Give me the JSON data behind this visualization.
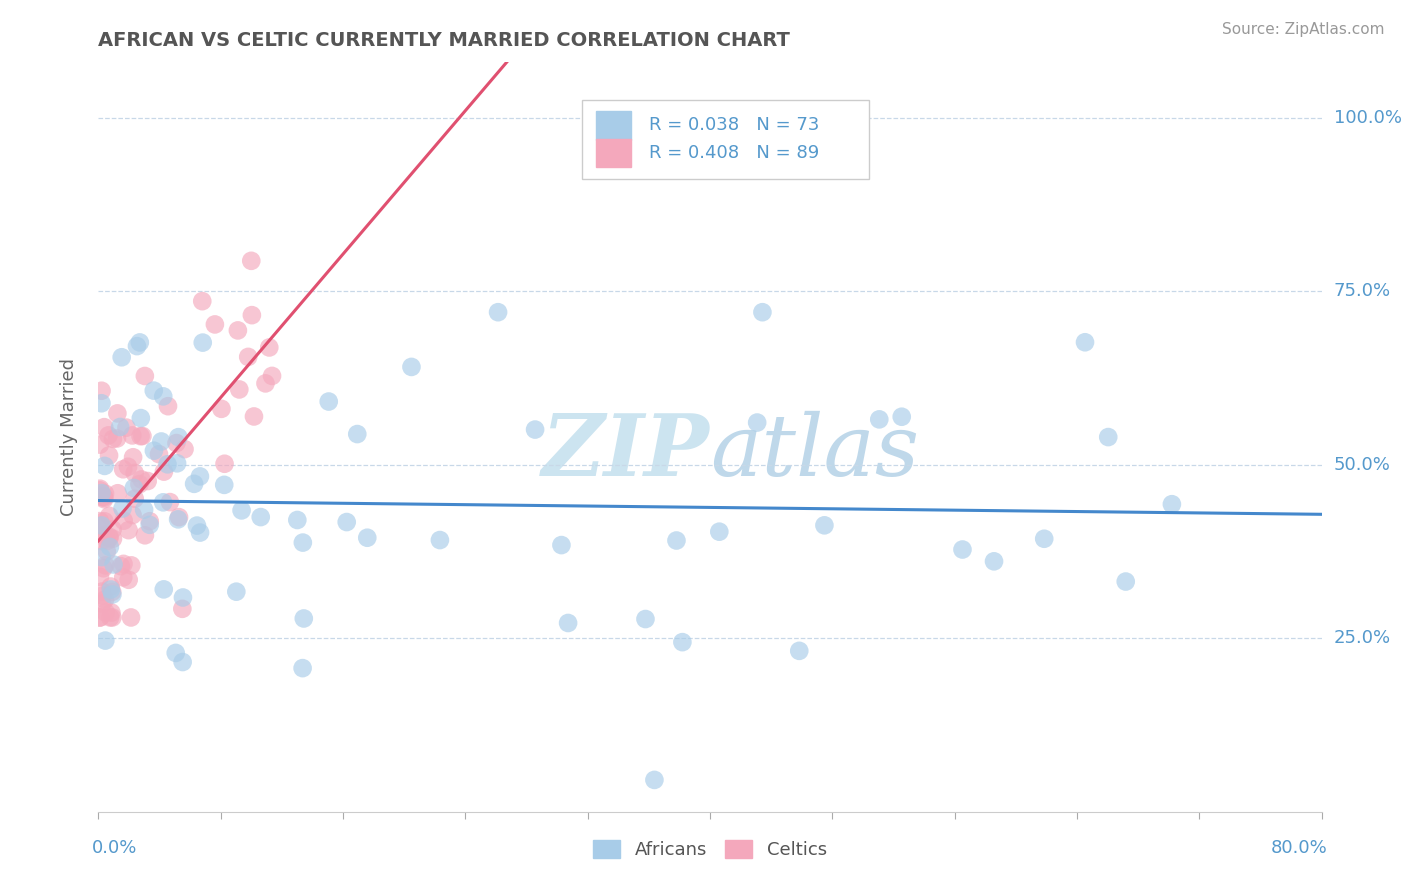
{
  "title": "AFRICAN VS CELTIC CURRENTLY MARRIED CORRELATION CHART",
  "source": "Source: ZipAtlas.com",
  "ylabel": "Currently Married",
  "xmin": 0.0,
  "xmax": 0.8,
  "ymin": 0.0,
  "ymax": 1.08,
  "blue_color": "#a8cce8",
  "pink_color": "#f4a8bc",
  "blue_line_color": "#4488cc",
  "pink_line_color": "#e05070",
  "dash_color": "#e08898",
  "blue_R": 0.038,
  "blue_N": 73,
  "pink_R": 0.408,
  "pink_N": 89,
  "watermark_color": "#cce4f0",
  "grid_color": "#c8d8e8",
  "ytick_color": "#5599cc",
  "xtick_color": "#5599cc",
  "title_color": "#555555",
  "source_color": "#999999"
}
